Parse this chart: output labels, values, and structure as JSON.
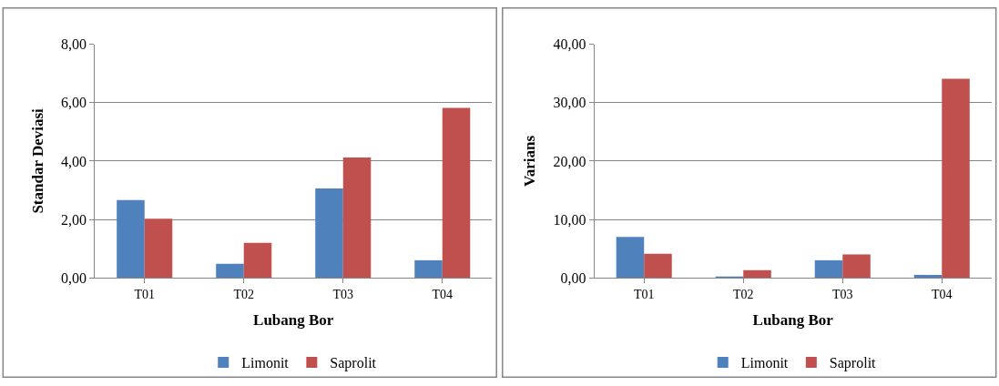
{
  "chart_data": [
    {
      "type": "bar",
      "categories": [
        "T01",
        "T02",
        "T03",
        "T04"
      ],
      "xlabel": "Lubang Bor",
      "ylabel": "Standar Deviasi",
      "series": [
        {
          "name": "Limonit",
          "color": "#4f81bd",
          "values": [
            2.66,
            0.48,
            3.06,
            0.6
          ]
        },
        {
          "name": "Saprolit",
          "color": "#c0504d",
          "values": [
            2.02,
            1.2,
            4.12,
            5.82
          ]
        }
      ],
      "ylim": [
        0,
        8
      ],
      "yticks": [
        {
          "value": 0,
          "label": "0,00"
        },
        {
          "value": 2,
          "label": "2,00"
        },
        {
          "value": 4,
          "label": "4,00"
        },
        {
          "value": 6,
          "label": "6,00"
        },
        {
          "value": 8,
          "label": "8,00"
        }
      ],
      "grid": "y",
      "legend": "bottom"
    },
    {
      "type": "bar",
      "categories": [
        "T01",
        "T02",
        "T03",
        "T04"
      ],
      "xlabel": "Lubang Bor",
      "ylabel": "Varians",
      "series": [
        {
          "name": "Limonit",
          "color": "#4f81bd",
          "values": [
            7.0,
            0.2,
            3.0,
            0.5
          ]
        },
        {
          "name": "Saprolit",
          "color": "#c0504d",
          "values": [
            4.1,
            1.3,
            4.0,
            34.1
          ]
        }
      ],
      "ylim": [
        0,
        40
      ],
      "yticks": [
        {
          "value": 0,
          "label": "0,00"
        },
        {
          "value": 10,
          "label": "10,00"
        },
        {
          "value": 20,
          "label": "20,00"
        },
        {
          "value": 30,
          "label": "30,00"
        },
        {
          "value": 40,
          "label": "40,00"
        }
      ],
      "grid": "y",
      "legend": "bottom"
    }
  ]
}
